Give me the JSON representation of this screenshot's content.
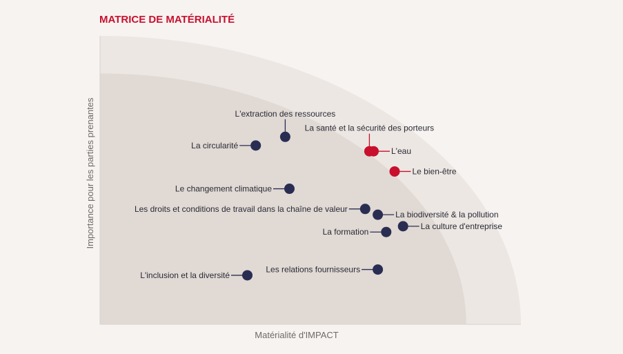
{
  "chart_data": {
    "type": "scatter",
    "title": "MATRICE DE MATÉRIALITÉ",
    "xlabel": "Matérialité d'IMPACT",
    "ylabel": "Importance pour les parties prenantes",
    "xlim": [
      0,
      100
    ],
    "ylim": [
      0,
      100
    ],
    "grid": false,
    "colors": {
      "primary": "#2a2d52",
      "highlight": "#c8102e",
      "zone_outer": "#ece7e3",
      "zone_inner": "#e0d9d4",
      "title": "#c8102e"
    },
    "points": [
      {
        "label": "L'extraction des ressources",
        "x": 44,
        "y": 65,
        "color": "#2a2d52",
        "label_side": "above"
      },
      {
        "label": "La circularité",
        "x": 37,
        "y": 62,
        "color": "#2a2d52",
        "label_side": "left"
      },
      {
        "label": "La santé et la sécurité des porteurs",
        "x": 64,
        "y": 60,
        "color": "#c8102e",
        "label_side": "above"
      },
      {
        "label": "L'eau",
        "x": 65,
        "y": 60,
        "color": "#c8102e",
        "label_side": "right"
      },
      {
        "label": "Le bien-être",
        "x": 70,
        "y": 53,
        "color": "#c8102e",
        "label_side": "right"
      },
      {
        "label": "Le changement climatique",
        "x": 45,
        "y": 47,
        "color": "#2a2d52",
        "label_side": "left"
      },
      {
        "label": "Les droits et conditions de travail dans la chaîne de valeur",
        "x": 63,
        "y": 40,
        "color": "#2a2d52",
        "label_side": "left"
      },
      {
        "label": "La biodiversité & la pollution",
        "x": 66,
        "y": 38,
        "color": "#2a2d52",
        "label_side": "right"
      },
      {
        "label": "La culture d'entreprise",
        "x": 72,
        "y": 34,
        "color": "#2a2d52",
        "label_side": "right"
      },
      {
        "label": "La formation",
        "x": 68,
        "y": 32,
        "color": "#2a2d52",
        "label_side": "left"
      },
      {
        "label": "Les relations fournisseurs",
        "x": 66,
        "y": 19,
        "color": "#2a2d52",
        "label_side": "left"
      },
      {
        "label": "L'inclusion et la diversité",
        "x": 35,
        "y": 17,
        "color": "#2a2d52",
        "label_side": "left"
      }
    ]
  }
}
